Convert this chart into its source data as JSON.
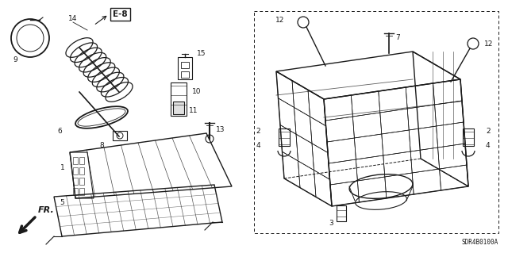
{
  "bg_color": "#ffffff",
  "line_color": "#1a1a1a",
  "text_color": "#1a1a1a",
  "diagram_ref": "SDR4B0100A",
  "fr_label": "FR.",
  "e8_label": "E-8",
  "lfs": 6.5,
  "small_fs": 5.5,
  "ref_fs": 5.5,
  "fr_fs": 8.0,
  "e8_fs": 7.5
}
